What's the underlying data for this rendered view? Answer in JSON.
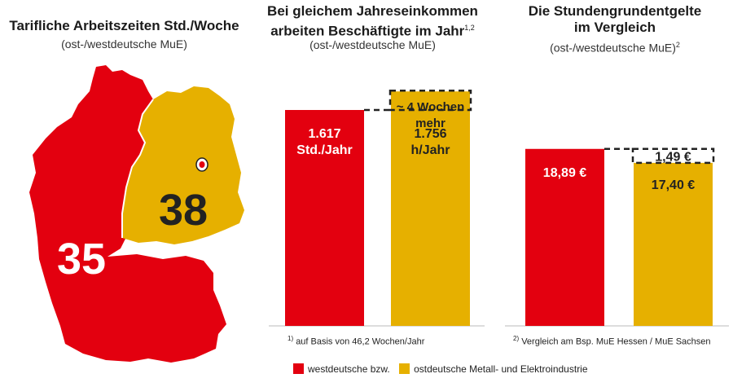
{
  "colors": {
    "west": "#e3000f",
    "east": "#e6b000",
    "dash": "#222222"
  },
  "map_panel": {
    "title": "Tarifliche Arbeitszeiten Std./Woche",
    "subtitle": "(ost-/westdeutsche MuE)",
    "west_value": "35",
    "east_value": "38"
  },
  "chart_data": [
    {
      "type": "bar",
      "title": "Bei gleichem Jahreseinkommen arbeiten Beschäftigte im Jahr",
      "title_line1": "Bei gleichem Jahreseinkommen",
      "title_line2": "arbeiten Beschäftigte im Jahr",
      "title_sup": "1,2",
      "subtitle": "(ost-/westdeutsche MuE)",
      "categories": [
        "westdeutsche",
        "ostdeutsche"
      ],
      "values": [
        1617,
        1756
      ],
      "ylim": [
        0,
        1800
      ],
      "value_labels": [
        [
          "1.617",
          "Std./Jahr"
        ],
        [
          "1.756",
          "h/Jahr"
        ]
      ],
      "annotation": [
        "~ 4 Wochen",
        "mehr"
      ],
      "footnote_mark": "1)",
      "footnote": "auf Basis von 46,2 Wochen/Jahr"
    },
    {
      "type": "bar",
      "title": "Die Stundengrundentgelte im Vergleich",
      "title_line1": "Die Stundengrundentgelte",
      "title_line2": "im Vergleich",
      "subtitle": "(ost-/westdeutsche MuE)",
      "subtitle_sup": "2",
      "categories": [
        "westdeutsche",
        "ostdeutsche"
      ],
      "values": [
        18.89,
        17.4
      ],
      "ylim": [
        0,
        20
      ],
      "value_labels": [
        "18,89 €",
        "17,40 €"
      ],
      "difference_label": "1,49 €",
      "footnote_mark": "2)",
      "footnote": "Vergleich am Bsp. MuE Hessen / MuE Sachsen"
    }
  ],
  "legend": {
    "west_label": "westdeutsche bzw.",
    "east_label": "ostdeutsche Metall- und Elektroindustrie"
  }
}
